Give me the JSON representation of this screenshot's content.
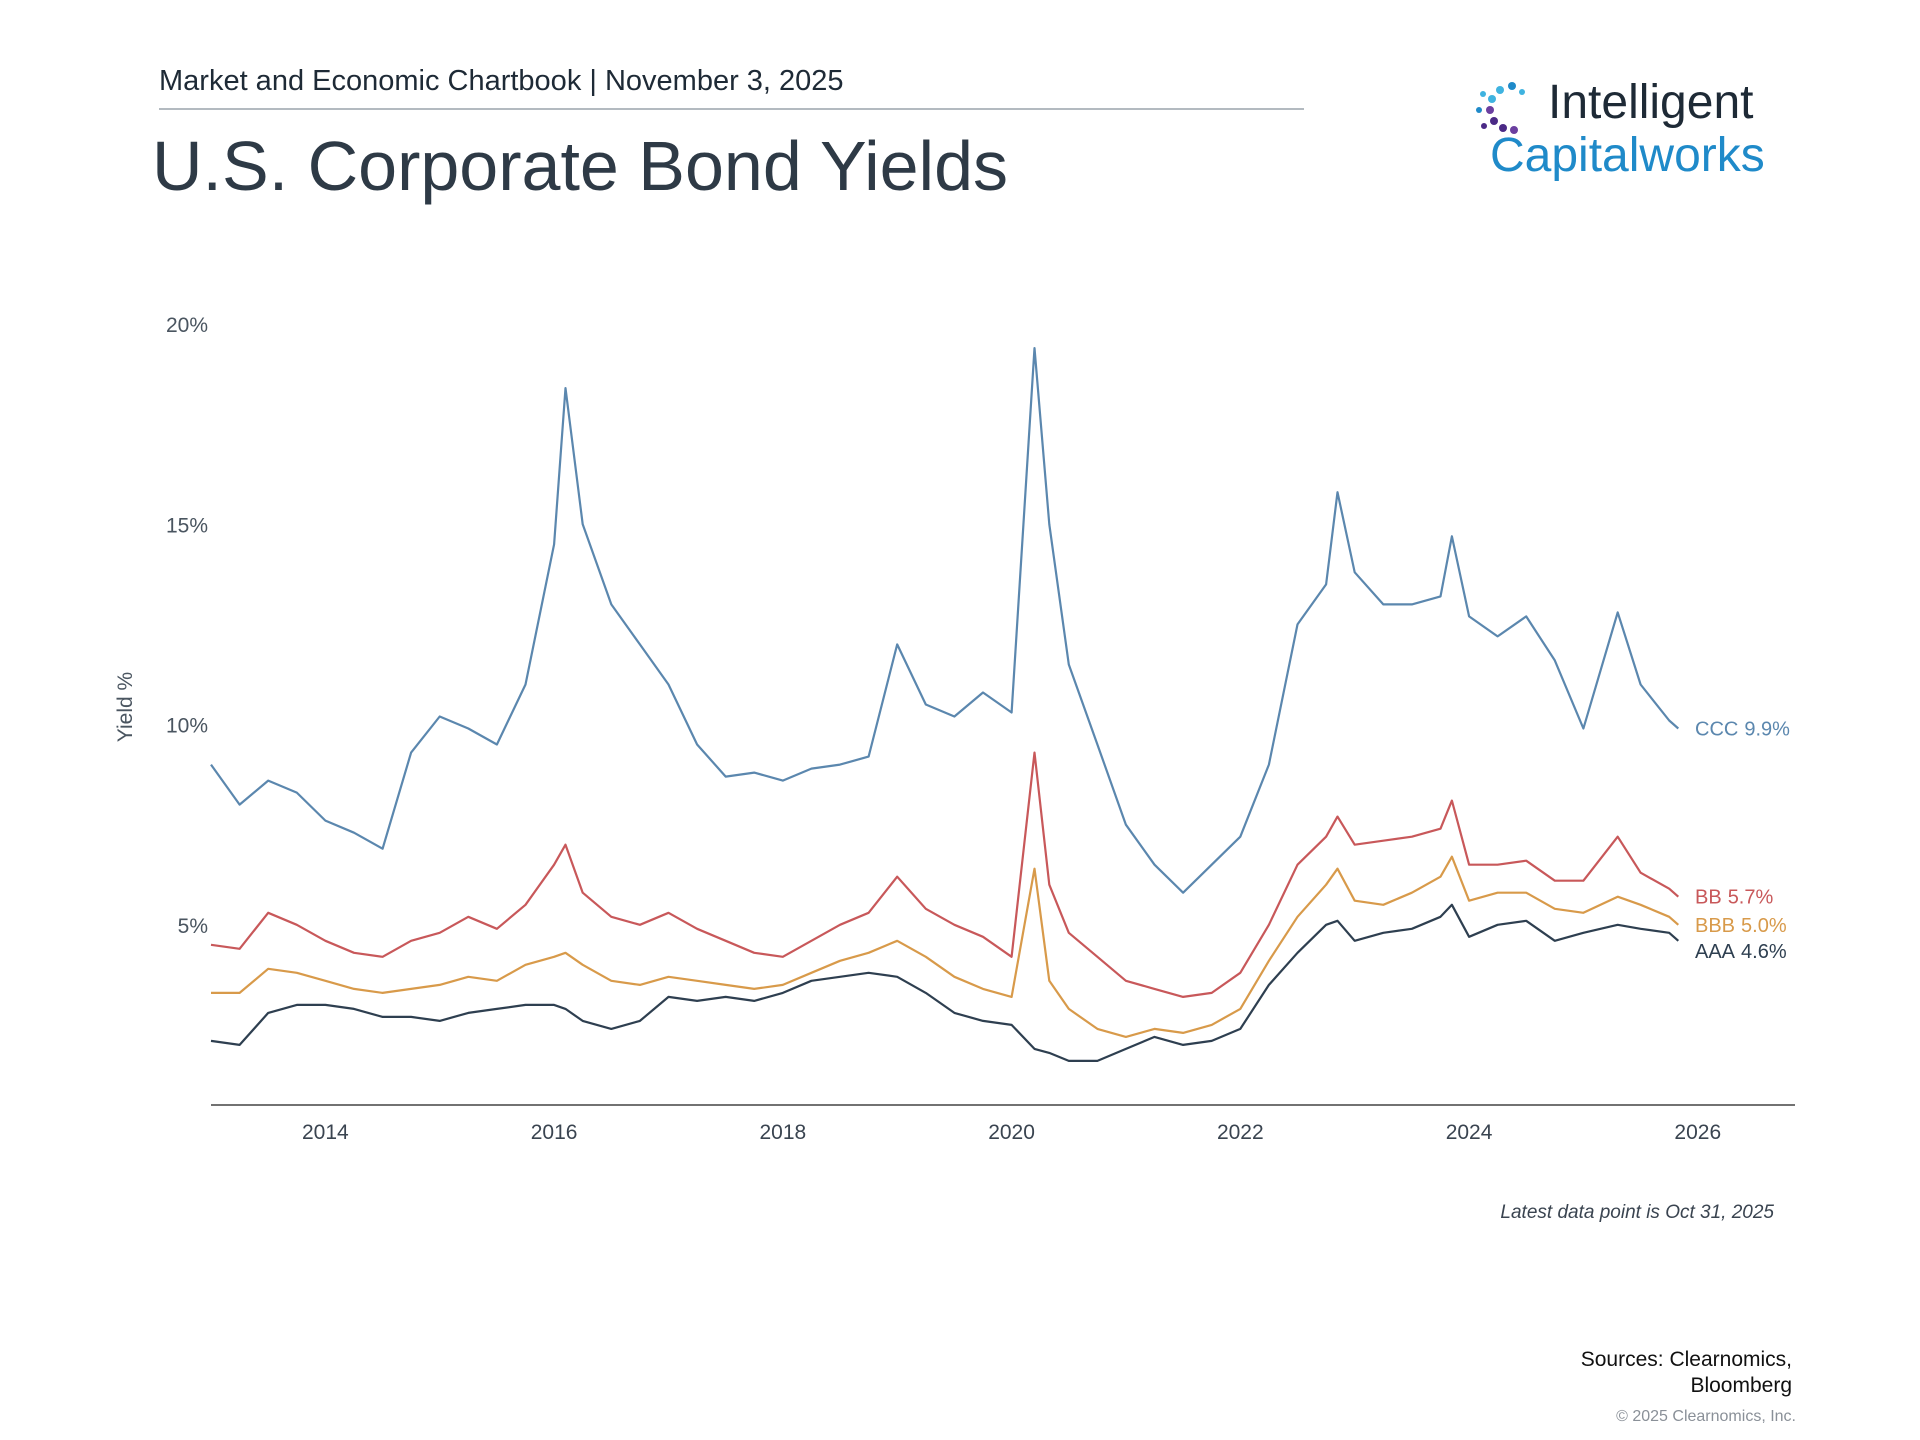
{
  "logo": {
    "line1": "Intelligent",
    "line2": "Capitalworks"
  },
  "chart_data": {
    "type": "line",
    "subtitle": "Market and Economic Chartbook | November 3, 2025",
    "title": "U.S. Corporate Bond Yields",
    "y_label": "Yield %",
    "annotation": "Latest data point is Oct 31, 2025",
    "source": [
      "Sources: Clearnomics,",
      "Bloomberg"
    ],
    "copyright": "© 2025 Clearnomics, Inc.",
    "xlim": [
      2013,
      2026.85
    ],
    "xticks": [
      2014,
      2016,
      2018,
      2020,
      2022,
      2024,
      2026
    ],
    "ylim": [
      0.5,
      20.5
    ],
    "yticks": [
      {
        "value": 5,
        "label": "5%"
      },
      {
        "value": 10,
        "label": "10%"
      },
      {
        "value": 15,
        "label": "15%"
      },
      {
        "value": 20,
        "label": "20%"
      }
    ],
    "grid": false,
    "x": [
      2013.0,
      2013.25,
      2013.5,
      2013.75,
      2014.0,
      2014.25,
      2014.5,
      2014.75,
      2015.0,
      2015.25,
      2015.5,
      2015.75,
      2016.0,
      2016.1,
      2016.25,
      2016.5,
      2016.75,
      2017.0,
      2017.25,
      2017.5,
      2017.75,
      2018.0,
      2018.25,
      2018.5,
      2018.75,
      2019.0,
      2019.25,
      2019.5,
      2019.75,
      2020.0,
      2020.2,
      2020.33,
      2020.5,
      2020.75,
      2021.0,
      2021.25,
      2021.5,
      2021.75,
      2022.0,
      2022.25,
      2022.5,
      2022.75,
      2022.85,
      2023.0,
      2023.25,
      2023.5,
      2023.75,
      2023.85,
      2024.0,
      2024.25,
      2024.5,
      2024.75,
      2025.0,
      2025.3,
      2025.5,
      2025.75,
      2025.83
    ],
    "series": [
      {
        "name": "CCC",
        "last_label": "9.9%",
        "color": "#5b87ae",
        "values": [
          9.0,
          8.0,
          8.6,
          8.3,
          7.6,
          7.3,
          6.9,
          9.3,
          10.2,
          9.9,
          9.5,
          11.0,
          14.5,
          18.4,
          15.0,
          13.0,
          12.0,
          11.0,
          9.5,
          8.7,
          8.8,
          8.6,
          8.9,
          9.0,
          9.2,
          12.0,
          10.5,
          10.2,
          10.8,
          10.3,
          19.4,
          15.0,
          11.5,
          9.5,
          7.5,
          6.5,
          5.8,
          6.5,
          7.2,
          9.0,
          12.5,
          13.5,
          15.8,
          13.8,
          13.0,
          13.0,
          13.2,
          14.7,
          12.7,
          12.2,
          12.7,
          11.6,
          9.9,
          12.8,
          11.0,
          10.1,
          9.9
        ]
      },
      {
        "name": "BB",
        "last_label": "5.7%",
        "color": "#c8585a",
        "values": [
          4.5,
          4.4,
          5.3,
          5.0,
          4.6,
          4.3,
          4.2,
          4.6,
          4.8,
          5.2,
          4.9,
          5.5,
          6.5,
          7.0,
          5.8,
          5.2,
          5.0,
          5.3,
          4.9,
          4.6,
          4.3,
          4.2,
          4.6,
          5.0,
          5.3,
          6.2,
          5.4,
          5.0,
          4.7,
          4.2,
          9.3,
          6.0,
          4.8,
          4.2,
          3.6,
          3.4,
          3.2,
          3.3,
          3.8,
          5.0,
          6.5,
          7.2,
          7.7,
          7.0,
          7.1,
          7.2,
          7.4,
          8.1,
          6.5,
          6.5,
          6.6,
          6.1,
          6.1,
          7.2,
          6.3,
          5.9,
          5.7
        ]
      },
      {
        "name": "BBB",
        "last_label": "5.0%",
        "color": "#d89a4a",
        "values": [
          3.3,
          3.3,
          3.9,
          3.8,
          3.6,
          3.4,
          3.3,
          3.4,
          3.5,
          3.7,
          3.6,
          4.0,
          4.2,
          4.3,
          4.0,
          3.6,
          3.5,
          3.7,
          3.6,
          3.5,
          3.4,
          3.5,
          3.8,
          4.1,
          4.3,
          4.6,
          4.2,
          3.7,
          3.4,
          3.2,
          6.4,
          3.6,
          2.9,
          2.4,
          2.2,
          2.4,
          2.3,
          2.5,
          2.9,
          4.1,
          5.2,
          6.0,
          6.4,
          5.6,
          5.5,
          5.8,
          6.2,
          6.7,
          5.6,
          5.8,
          5.8,
          5.4,
          5.3,
          5.7,
          5.5,
          5.2,
          5.0
        ]
      },
      {
        "name": "AAA",
        "last_label": "4.6%",
        "color": "#2e3f50",
        "values": [
          2.1,
          2.0,
          2.8,
          3.0,
          3.0,
          2.9,
          2.7,
          2.7,
          2.6,
          2.8,
          2.9,
          3.0,
          3.0,
          2.9,
          2.6,
          2.4,
          2.6,
          3.2,
          3.1,
          3.2,
          3.1,
          3.3,
          3.6,
          3.7,
          3.8,
          3.7,
          3.3,
          2.8,
          2.6,
          2.5,
          1.9,
          1.8,
          1.6,
          1.6,
          1.9,
          2.2,
          2.0,
          2.1,
          2.4,
          3.5,
          4.3,
          5.0,
          5.1,
          4.6,
          4.8,
          4.9,
          5.2,
          5.5,
          4.7,
          5.0,
          5.1,
          4.6,
          4.8,
          5.0,
          4.9,
          4.8,
          4.6
        ]
      }
    ]
  }
}
